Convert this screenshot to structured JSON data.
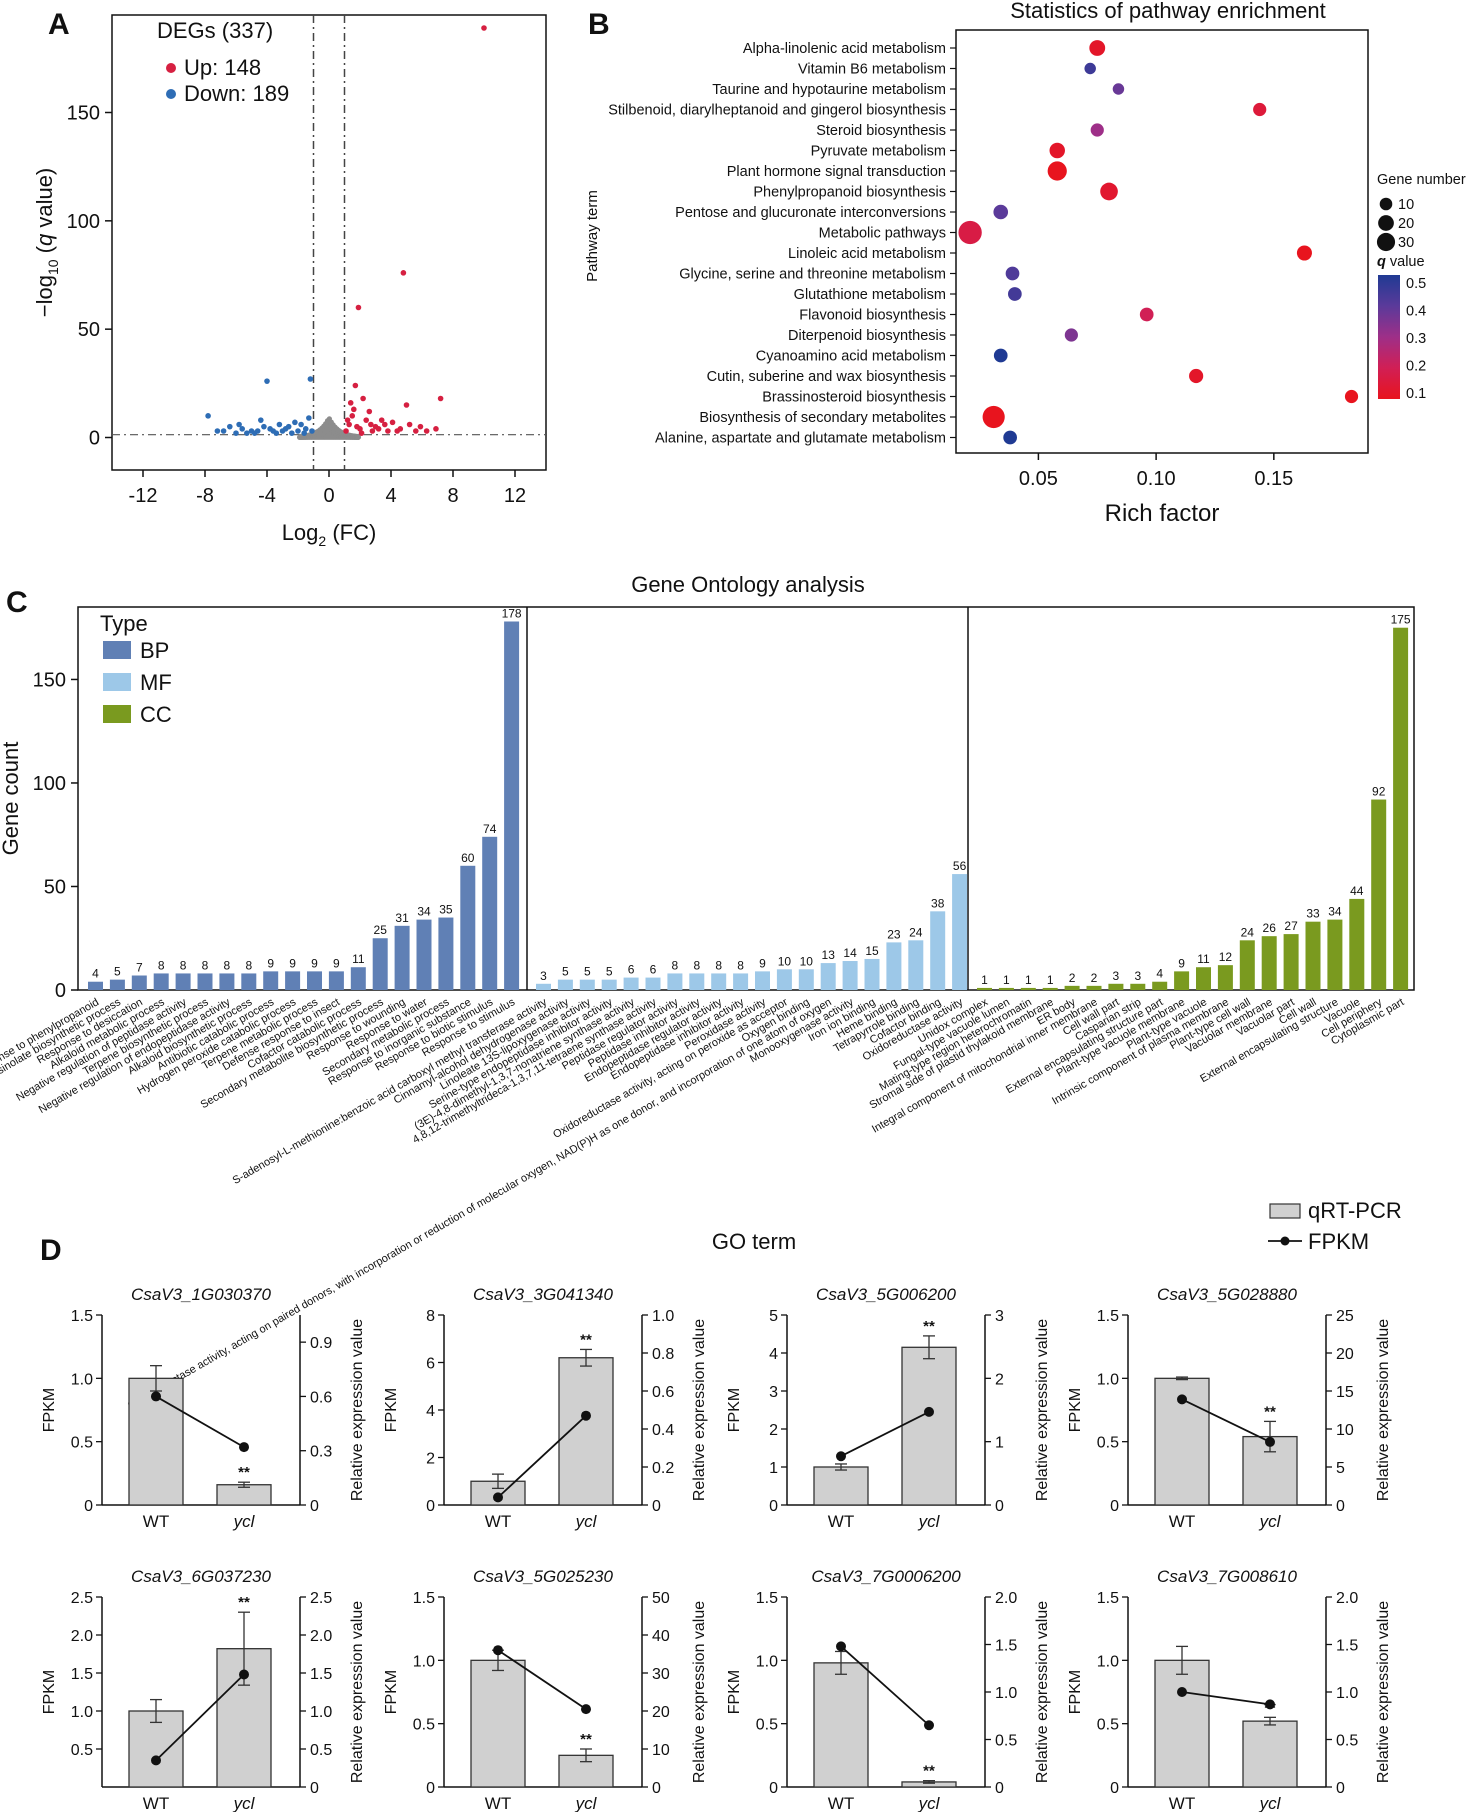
{
  "panel_labels": [
    "A",
    "B",
    "C",
    "D"
  ],
  "chart_data": [
    {
      "id": "A",
      "type": "scatter",
      "title": "",
      "xlabel_parts": [
        "Log",
        "2",
        " (FC)"
      ],
      "ylabel_parts": [
        "−log",
        "10",
        " (",
        "q",
        " value)"
      ],
      "xlim": [
        -14,
        14
      ],
      "ylim": [
        -15,
        195
      ],
      "xticks": [
        -12,
        -8,
        -4,
        0,
        4,
        8,
        12
      ],
      "yticks": [
        0,
        50,
        100,
        150
      ],
      "legend_title": "DEGs (337)",
      "legend": [
        {
          "label": "Up: 148",
          "color": "#d62041"
        },
        {
          "label": "Down: 189",
          "color": "#2e6db5"
        }
      ],
      "vlines": [
        -1,
        1
      ],
      "hline": 1.3,
      "colors": {
        "up": "#d62041",
        "down": "#2e6db5",
        "ns": "#8c8c8c"
      },
      "up_points": [
        [
          10.0,
          189
        ],
        [
          4.8,
          76
        ],
        [
          1.9,
          60
        ],
        [
          7.2,
          18
        ],
        [
          5.0,
          15
        ],
        [
          2.2,
          18
        ],
        [
          1.7,
          24
        ],
        [
          2.6,
          12
        ],
        [
          3.4,
          8
        ],
        [
          4.1,
          7
        ],
        [
          1.3,
          6
        ],
        [
          2.0,
          4
        ],
        [
          3.0,
          5
        ],
        [
          4.6,
          4
        ],
        [
          5.6,
          3
        ],
        [
          6.3,
          3
        ],
        [
          1.5,
          10
        ],
        [
          2.8,
          3
        ],
        [
          3.8,
          3
        ],
        [
          1.1,
          3
        ],
        [
          6.9,
          4
        ],
        [
          1.6,
          13
        ],
        [
          2.4,
          8
        ],
        [
          3.2,
          4
        ],
        [
          5.2,
          6
        ],
        [
          2.1,
          2
        ],
        [
          1.2,
          8
        ],
        [
          4.4,
          3
        ],
        [
          5.9,
          5
        ],
        [
          1.8,
          5
        ],
        [
          3.6,
          6
        ],
        [
          2.7,
          6
        ],
        [
          1.4,
          16
        ]
      ],
      "down_points": [
        [
          -4.0,
          26
        ],
        [
          -1.2,
          27
        ],
        [
          -7.8,
          10
        ],
        [
          -4.4,
          8
        ],
        [
          -3.2,
          6
        ],
        [
          -2.6,
          5
        ],
        [
          -6.4,
          5
        ],
        [
          -5.6,
          4
        ],
        [
          -7.2,
          3
        ],
        [
          -5.0,
          3
        ],
        [
          -3.8,
          4
        ],
        [
          -2.0,
          3
        ],
        [
          -1.5,
          4
        ],
        [
          -1.8,
          6
        ],
        [
          -2.4,
          2
        ],
        [
          -3.4,
          2
        ],
        [
          -4.8,
          2
        ],
        [
          -6.0,
          2
        ],
        [
          -1.3,
          9
        ],
        [
          -2.8,
          4
        ],
        [
          -3.6,
          3
        ],
        [
          -4.2,
          5
        ],
        [
          -5.3,
          2
        ],
        [
          -6.8,
          3
        ],
        [
          -1.6,
          2
        ],
        [
          -2.2,
          7
        ],
        [
          -3.0,
          3
        ],
        [
          -4.6,
          3
        ],
        [
          -1.1,
          3
        ],
        [
          -5.8,
          6
        ]
      ],
      "ns_range": [
        -1.0,
        1.0
      ]
    },
    {
      "id": "B",
      "type": "scatter",
      "title": "Statistics of pathway enrichment",
      "xlabel": "Rich factor",
      "ylabel": "Pathway term",
      "xlim": [
        0.015,
        0.19
      ],
      "xticks": [
        "0.05",
        "0.10",
        "0.15"
      ],
      "xtick_values": [
        0.05,
        0.1,
        0.15
      ],
      "size_legend_title": "Gene number",
      "size_legend": [
        10,
        20,
        30
      ],
      "color_legend_title": "q value",
      "color_legend_ticks": [
        "0.5",
        "0.4",
        "0.3",
        "0.2",
        "0.1"
      ],
      "color_stops": [
        "#1f3a93",
        "#5b3a9a",
        "#9e2f88",
        "#d11f55",
        "#e8141e"
      ],
      "pathways": [
        {
          "term": "Alpha-linolenic acid metabolism",
          "rich": 0.075,
          "genes": 14,
          "q": 0.12
        },
        {
          "term": "Vitamin B6 metabolism",
          "rich": 0.072,
          "genes": 5,
          "q": 0.45
        },
        {
          "term": "Taurine and hypotaurine metabolism",
          "rich": 0.084,
          "genes": 5,
          "q": 0.38
        },
        {
          "term": "Stilbenoid, diarylheptanoid and gingerol biosynthesis",
          "rich": 0.144,
          "genes": 8,
          "q": 0.15
        },
        {
          "term": "Steroid biosynthesis",
          "rich": 0.075,
          "genes": 8,
          "q": 0.3
        },
        {
          "term": "Pyruvate metabolism",
          "rich": 0.058,
          "genes": 13,
          "q": 0.12
        },
        {
          "term": "Plant hormone signal transduction",
          "rich": 0.058,
          "genes": 24,
          "q": 0.1
        },
        {
          "term": "Phenylpropanoid biosynthesis",
          "rich": 0.08,
          "genes": 19,
          "q": 0.13
        },
        {
          "term": "Pentose and glucuronate interconversions",
          "rich": 0.034,
          "genes": 11,
          "q": 0.4
        },
        {
          "term": "Metabolic pathways",
          "rich": 0.021,
          "genes": 40,
          "q": 0.17
        },
        {
          "term": "Linoleic acid metabolism",
          "rich": 0.163,
          "genes": 12,
          "q": 0.1
        },
        {
          "term": "Glycine, serine and threonine metabolism",
          "rich": 0.039,
          "genes": 9,
          "q": 0.42
        },
        {
          "term": "Glutathione metabolism",
          "rich": 0.04,
          "genes": 9,
          "q": 0.44
        },
        {
          "term": "Flavonoid biosynthesis",
          "rich": 0.096,
          "genes": 9,
          "q": 0.2
        },
        {
          "term": "Diterpenoid biosynthesis",
          "rich": 0.064,
          "genes": 8,
          "q": 0.35
        },
        {
          "term": "Cyanoamino acid metabolism",
          "rich": 0.034,
          "genes": 9,
          "q": 0.5
        },
        {
          "term": "Cutin, suberine and wax biosynthesis",
          "rich": 0.117,
          "genes": 10,
          "q": 0.12
        },
        {
          "term": "Brassinosteroid biosynthesis",
          "rich": 0.183,
          "genes": 8,
          "q": 0.1
        },
        {
          "term": "Biosynthesis of secondary metabolites",
          "rich": 0.031,
          "genes": 35,
          "q": 0.1
        },
        {
          "term": "Alanine, aspartate and glutamate metabolism",
          "rich": 0.038,
          "genes": 9,
          "q": 0.5
        }
      ]
    },
    {
      "id": "C",
      "type": "bar",
      "title": "Gene Ontology analysis",
      "xlabel": "GO term",
      "ylabel": "Gene count",
      "ylim": [
        0,
        185
      ],
      "yticks": [
        0,
        50,
        100,
        150
      ],
      "legend_title": "Type",
      "series": [
        {
          "name": "BP",
          "color": "#6080b5",
          "categories": [
            "Response to phenylpropanoid",
            "Indole glucosinolate biosynthetic process",
            "Response to desiccation",
            "Alkaloid metabolic process",
            "Negative regulation of peptidase activity",
            "Terpene biosynthetic process",
            "Negative regulation of endopeptidase activity",
            "Alkaloid biosynthetic process",
            "Antibiotic catabolic process",
            "Hydrogen peroxide catabolic process",
            "Terpene metabolic process",
            "Defense response to insect",
            "Cofactor catabolic process",
            "Secondary metabolite biosynthetic process",
            "Response to wounding",
            "Response to water",
            "Secondary metabolic process",
            "Response to inorganic substance",
            "Response to biotic stimulus",
            "Response to stimulus"
          ],
          "values": [
            4,
            5,
            7,
            8,
            8,
            8,
            8,
            8,
            9,
            9,
            9,
            9,
            11,
            25,
            31,
            34,
            35,
            60,
            74,
            178
          ]
        },
        {
          "name": "MF",
          "color": "#9dc8e8",
          "categories": [
            "S-adenosyl-L-methionine:benzoic acid carboxyl methyl transferase activity",
            "Cinnamyl-alcohol dehydrogenase activity",
            "Linoleate 13S-lipoxygenase activity",
            "Serine-type endopeptidase inhibitor activity",
            "(3E)-4,8-dimethyl-1,3,7-nonatriene synthase activity",
            "4,8,12-trimethyltrideca-1,3,7,11-tetraene synthase activity",
            "Peptidase regulator activity",
            "Peptidase inhibitor activity",
            "Endopeptidase regulator activity",
            "Endopeptidase inhibitor activity",
            "Peroxidase activity",
            "Oxidoreductase activity, acting on peroxide as acceptor",
            "Oxygen binding",
            "Oxidoreductase activity, acting on paired donors, with incorporation or reduction of molecular oxygen, NAD(P)H as one donor, and incorporation of one atom of oxygen",
            "Monooxygenase activity",
            "Iron ion binding",
            "Heme binding",
            "Tetrapyrrole binding",
            "Cofactor binding",
            "Oxidoreductase activity"
          ],
          "values": [
            3,
            5,
            5,
            5,
            6,
            6,
            8,
            8,
            8,
            8,
            9,
            10,
            10,
            13,
            14,
            15,
            23,
            24,
            38,
            56
          ]
        },
        {
          "name": "CC",
          "color": "#7a9a1f",
          "categories": [
            "Unidox complex",
            "Fungal-type vacuole lumen",
            "Mating-type region heterochromatin",
            "Stromal side of plastid thylakoid membrane",
            "ER body",
            "Integral component of mitochondrial inner membrane",
            "Cell wall part",
            "Casparian strip",
            "External encapsulating structure part",
            "Plant-type vacuole membrane",
            "Plant-type vacuole",
            "Intrinsic component of plasma membrane",
            "Plant-type cell wall",
            "Vacuolar membrane",
            "Vacuolar part",
            "Cell wall",
            "External encapsulating structure",
            "Vacuole",
            "Cell periphery",
            "Cytoplasmic part"
          ],
          "values": [
            1,
            1,
            1,
            1,
            2,
            2,
            3,
            3,
            4,
            9,
            11,
            12,
            24,
            26,
            27,
            33,
            34,
            44,
            92,
            175
          ]
        }
      ]
    },
    {
      "id": "D",
      "type": "bar",
      "legend": [
        "qRT-PCR",
        "FPKM"
      ],
      "bar_color": "#d0d0d0",
      "line_color": "#111111",
      "left_axis_label": "FPKM",
      "right_axis_label": "Relative expression value",
      "groups": [
        "WT",
        "ycl"
      ],
      "significance": "**",
      "subplots": [
        {
          "gene": "CsaV3_1G030370",
          "ylim": [
            0,
            1.5
          ],
          "yticks": [
            "0",
            "0.5",
            "1.0",
            "1.5"
          ],
          "r_ylim": [
            0,
            1.05
          ],
          "r_yticks": [
            "0",
            "0.3",
            "0.6",
            "0.9"
          ],
          "qrt": [
            1.0,
            0.16
          ],
          "qrt_err": [
            0.1,
            0.02
          ],
          "fpkm": [
            0.6,
            0.32
          ]
        },
        {
          "gene": "CsaV3_3G041340",
          "ylim": [
            0,
            8
          ],
          "yticks": [
            "0",
            "2",
            "4",
            "6",
            "8"
          ],
          "r_ylim": [
            0,
            1.0
          ],
          "r_yticks": [
            "0",
            "0.2",
            "0.4",
            "0.6",
            "0.8",
            "1.0"
          ],
          "qrt": [
            1.0,
            6.2
          ],
          "qrt_err": [
            0.3,
            0.35
          ],
          "fpkm": [
            0.04,
            0.47
          ]
        },
        {
          "gene": "CsaV3_5G006200",
          "ylim": [
            0,
            5
          ],
          "yticks": [
            "0",
            "1",
            "2",
            "3",
            "4",
            "5"
          ],
          "r_ylim": [
            0,
            3
          ],
          "r_yticks": [
            "0",
            "1",
            "2",
            "3"
          ],
          "qrt": [
            1.0,
            4.15
          ],
          "qrt_err": [
            0.08,
            0.3
          ],
          "fpkm": [
            0.77,
            1.47
          ]
        },
        {
          "gene": "CsaV3_5G028880",
          "ylim": [
            0,
            1.5
          ],
          "yticks": [
            "0",
            "0.5",
            "1.0",
            "1.5"
          ],
          "r_ylim": [
            0,
            25
          ],
          "r_yticks": [
            "0",
            "5",
            "10",
            "15",
            "20",
            "25"
          ],
          "qrt": [
            1.0,
            0.54
          ],
          "qrt_err": [
            0.01,
            0.12
          ],
          "fpkm": [
            13.9,
            8.3
          ]
        },
        {
          "gene": "CsaV3_6G037230",
          "ylim": [
            0,
            2.5
          ],
          "yticks": [
            "0.5",
            "1.0",
            "1.5",
            "2.0",
            "2.5"
          ],
          "r_ylim": [
            0,
            2.5
          ],
          "r_yticks": [
            "0",
            "0.5",
            "1.0",
            "1.5",
            "2.0",
            "2.5"
          ],
          "qrt": [
            1.0,
            1.82
          ],
          "qrt_err": [
            0.15,
            0.48
          ],
          "fpkm": [
            0.35,
            1.48
          ]
        },
        {
          "gene": "CsaV3_5G025230",
          "ylim": [
            0,
            1.5
          ],
          "yticks": [
            "0",
            "0.5",
            "1.0",
            "1.5"
          ],
          "r_ylim": [
            0,
            50
          ],
          "r_yticks": [
            "0",
            "10",
            "20",
            "30",
            "40",
            "50"
          ],
          "qrt": [
            1.0,
            0.25
          ],
          "qrt_err": [
            0.08,
            0.05
          ],
          "fpkm": [
            36,
            20.5
          ]
        },
        {
          "gene": "CsaV3_7G0006200",
          "ylim": [
            0,
            1.5
          ],
          "yticks": [
            "0",
            "0.5",
            "1.0",
            "1.5"
          ],
          "r_ylim": [
            0,
            2.0
          ],
          "r_yticks": [
            "0",
            "0.5",
            "1.0",
            "1.5",
            "2.0"
          ],
          "qrt": [
            0.98,
            0.04
          ],
          "qrt_err": [
            0.09,
            0.01
          ],
          "fpkm": [
            1.48,
            0.65
          ]
        },
        {
          "gene": "CsaV3_7G008610",
          "ylim": [
            0,
            1.5
          ],
          "yticks": [
            "0",
            "0.5",
            "1.0",
            "1.5"
          ],
          "r_ylim": [
            0,
            2.0
          ],
          "r_yticks": [
            "0",
            "0.5",
            "1.0",
            "1.5",
            "2.0"
          ],
          "qrt": [
            1.0,
            0.52
          ],
          "qrt_err": [
            0.11,
            0.03
          ],
          "fpkm": [
            1.0,
            0.87
          ]
        }
      ]
    }
  ]
}
